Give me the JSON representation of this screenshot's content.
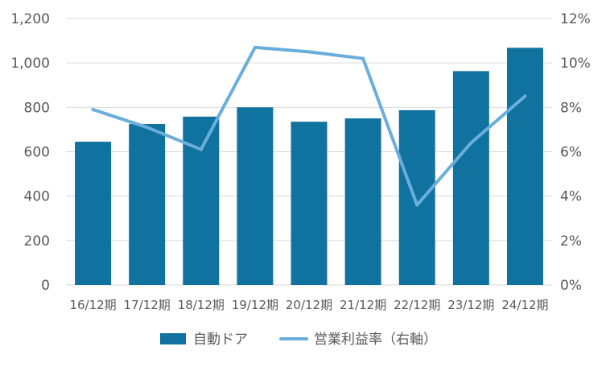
{
  "chart_data": {
    "type": "bar",
    "categories": [
      "16/12期",
      "17/12期",
      "18/12期",
      "19/12期",
      "20/12期",
      "21/12期",
      "22/12期",
      "23/12期",
      "24/12期"
    ],
    "series": [
      {
        "name": "自動ドア",
        "type": "bar",
        "axis": "left",
        "color": "#0f729f",
        "values": [
          645,
          725,
          758,
          800,
          735,
          750,
          787,
          963,
          1068
        ]
      },
      {
        "name": "営業利益率（右軸）",
        "type": "line",
        "axis": "right",
        "color": "#6aaedb",
        "values": [
          7.9,
          7.1,
          6.1,
          10.7,
          10.5,
          10.2,
          3.6,
          6.4,
          8.5
        ]
      }
    ],
    "y_left": {
      "min": 0,
      "max": 1200,
      "ticks": [
        0,
        200,
        400,
        600,
        800,
        1000,
        1200
      ],
      "tick_labels": [
        "0",
        "200",
        "400",
        "600",
        "800",
        "1,000",
        "1,200"
      ]
    },
    "y_right": {
      "min": 0,
      "max": 12,
      "ticks": [
        0,
        2,
        4,
        6,
        8,
        10,
        12
      ],
      "tick_labels": [
        "0%",
        "2%",
        "4%",
        "6%",
        "8%",
        "10%",
        "12%"
      ]
    },
    "grid": true,
    "legend": {
      "position": "bottom"
    },
    "colors": {
      "grid": "#d9d9d9",
      "axis": "#d9d9d9",
      "text": "#595959"
    }
  }
}
